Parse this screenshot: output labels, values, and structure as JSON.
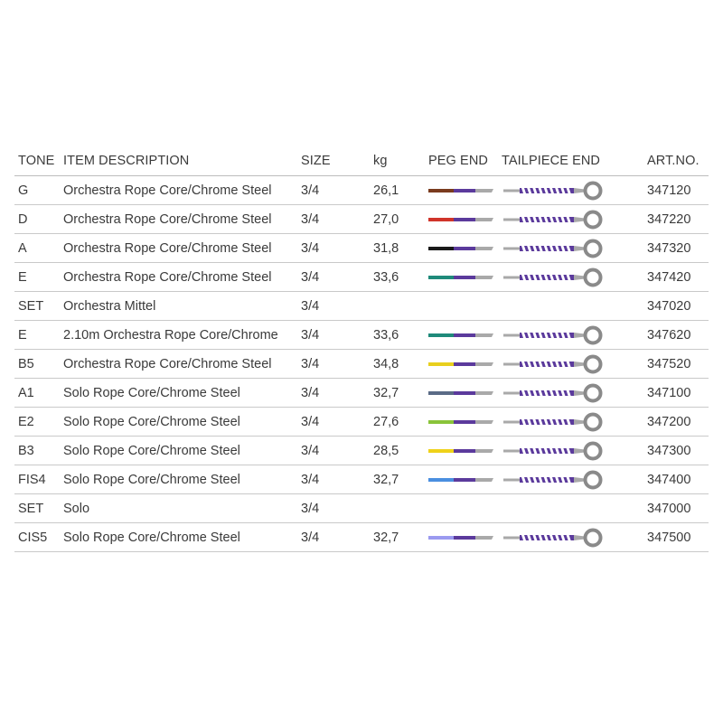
{
  "headers": {
    "tone": "TONE",
    "description": "ITEM DESCRIPTION",
    "size": "SIZE",
    "kg": "kg",
    "peg_end": "PEG END",
    "tailpiece_end": "TAILPIECE END",
    "art_no": "ART.NO."
  },
  "rows": [
    {
      "tone": "G",
      "description": "Orchestra Rope Core/Chrome Steel",
      "size": "3/4",
      "kg": "26,1",
      "peg_color": "#7a3b1e",
      "has_graphic": true,
      "art_no": "347120"
    },
    {
      "tone": "D",
      "description": "Orchestra Rope Core/Chrome Steel",
      "size": "3/4",
      "kg": "27,0",
      "peg_color": "#d0342a",
      "has_graphic": true,
      "art_no": "347220"
    },
    {
      "tone": "A",
      "description": "Orchestra Rope Core/Chrome Steel",
      "size": "3/4",
      "kg": "31,8",
      "peg_color": "#1a1a1a",
      "has_graphic": true,
      "art_no": "347320"
    },
    {
      "tone": "E",
      "description": "Orchestra Rope Core/Chrome Steel",
      "size": "3/4",
      "kg": "33,6",
      "peg_color": "#1f8a7a",
      "has_graphic": true,
      "art_no": "347420"
    },
    {
      "tone": "SET",
      "description": "Orchestra Mittel",
      "size": "3/4",
      "kg": "",
      "peg_color": "",
      "has_graphic": false,
      "art_no": "347020"
    },
    {
      "tone": "E",
      "description": "2.10m Orchestra Rope Core/Chrome",
      "size": "3/4",
      "kg": "33,6",
      "peg_color": "#1f8a7a",
      "has_graphic": true,
      "art_no": "347620"
    },
    {
      "tone": "B5",
      "description": "Orchestra Rope Core/Chrome Steel",
      "size": "3/4",
      "kg": "34,8",
      "peg_color": "#e8cf1e",
      "has_graphic": true,
      "art_no": "347520"
    },
    {
      "tone": "A1",
      "description": "Solo Rope Core/Chrome Steel",
      "size": "3/4",
      "kg": "32,7",
      "peg_color": "#5a6b86",
      "has_graphic": true,
      "art_no": "347100"
    },
    {
      "tone": "E2",
      "description": "Solo Rope Core/Chrome Steel",
      "size": "3/4",
      "kg": "27,6",
      "peg_color": "#8ac43a",
      "has_graphic": true,
      "art_no": "347200"
    },
    {
      "tone": "B3",
      "description": "Solo Rope Core/Chrome Steel",
      "size": "3/4",
      "kg": "28,5",
      "peg_color": "#efd21a",
      "has_graphic": true,
      "art_no": "347300"
    },
    {
      "tone": "FIS4",
      "description": "Solo Rope Core/Chrome Steel",
      "size": "3/4",
      "kg": "32,7",
      "peg_color": "#4a8fe0",
      "has_graphic": true,
      "art_no": "347400"
    },
    {
      "tone": "SET",
      "description": "Solo",
      "size": "3/4",
      "kg": "",
      "peg_color": "",
      "has_graphic": false,
      "art_no": "347000"
    },
    {
      "tone": "CIS5",
      "description": "Solo Rope Core/Chrome Steel",
      "size": "3/4",
      "kg": "32,7",
      "peg_color": "#9b9af0",
      "has_graphic": true,
      "art_no": "347500"
    }
  ],
  "colors": {
    "winding_purple": "#5b3a9c",
    "winding_light": "#ffffff",
    "steel_gray": "#a9a9a9",
    "steel_dark": "#8a8a8a",
    "rule_gray": "#c9c9c9"
  }
}
